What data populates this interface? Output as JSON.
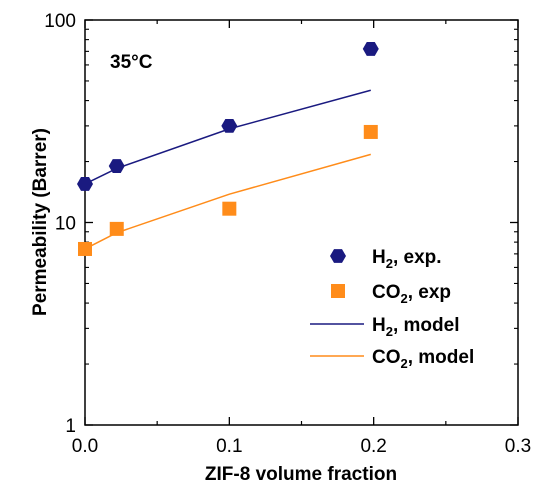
{
  "chart_data": {
    "type": "scatter",
    "title": "",
    "annotation": "35°C",
    "xlabel": "ZIF-8 volume fraction",
    "ylabel": "Permeability (Barrer)",
    "xlim": [
      0,
      0.3
    ],
    "ylim": [
      1,
      100
    ],
    "yscale": "log",
    "x_ticks": [
      "0.0",
      "0.1",
      "0.2",
      "0.3"
    ],
    "y_ticks": [
      "1",
      "10",
      "100"
    ],
    "grid": false,
    "legend_position": "bottom-right",
    "series": [
      {
        "name": "H",
        "name_sub": "2",
        "name_suffix": ", exp.",
        "kind": "markers",
        "marker": "hexagon",
        "color": "#1a1a80",
        "x": [
          0.0,
          0.022,
          0.1,
          0.198
        ],
        "y": [
          15.5,
          19,
          30,
          72
        ]
      },
      {
        "name": "CO",
        "name_sub": "2",
        "name_suffix": ", exp",
        "kind": "markers",
        "marker": "square",
        "color": "#ff8c1a",
        "x": [
          0.0,
          0.022,
          0.1,
          0.198
        ],
        "y": [
          7.4,
          9.3,
          11.7,
          28
        ]
      },
      {
        "name": "H",
        "name_sub": "2",
        "name_suffix": ", model",
        "kind": "line",
        "color": "#1a1a80",
        "x": [
          0.0,
          0.022,
          0.1,
          0.198
        ],
        "y": [
          15.5,
          18.5,
          29,
          45
        ]
      },
      {
        "name": "CO",
        "name_sub": "2",
        "name_suffix": ", model",
        "kind": "line",
        "color": "#ff8c1a",
        "x": [
          0.0,
          0.022,
          0.1,
          0.198
        ],
        "y": [
          7.4,
          8.9,
          13.8,
          21.7
        ]
      }
    ]
  }
}
